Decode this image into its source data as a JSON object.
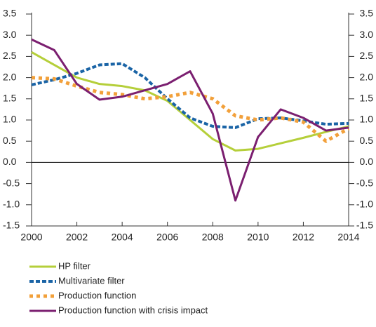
{
  "chart_data": {
    "type": "line",
    "x": [
      2000,
      2001,
      2002,
      2003,
      2004,
      2005,
      2006,
      2007,
      2008,
      2009,
      2010,
      2011,
      2012,
      2013,
      2014
    ],
    "xlim": [
      2000,
      2014
    ],
    "xticks": [
      2000,
      2002,
      2004,
      2006,
      2008,
      2010,
      2012,
      2014
    ],
    "ylim": [
      -1.5,
      3.5
    ],
    "yticks": [
      -1.5,
      {
        "value": -1,
        "label": "-1.0"
      },
      -0.5,
      {
        "value": 0,
        "label": "0.0"
      },
      0.5,
      {
        "value": 1,
        "label": "1.0"
      },
      1.5,
      {
        "value": 2,
        "label": "2.0"
      },
      2.5,
      {
        "value": 3,
        "label": "3.0"
      },
      3.5
    ],
    "series": [
      {
        "name": "HP filter",
        "color": "#b5cf3a",
        "style": "solid",
        "values": [
          2.6,
          2.3,
          2.0,
          1.85,
          1.8,
          1.7,
          1.45,
          1.0,
          0.55,
          0.28,
          0.32,
          0.45,
          0.58,
          0.72,
          0.85
        ]
      },
      {
        "name": "Multivariate filter",
        "color": "#1a64a6",
        "style": "dashed",
        "values": [
          1.83,
          1.95,
          2.1,
          2.3,
          2.33,
          2.0,
          1.5,
          1.05,
          0.85,
          0.82,
          1.03,
          1.05,
          0.98,
          0.9,
          0.92
        ]
      },
      {
        "name": "Production function",
        "color": "#f2a03a",
        "style": "dotted",
        "values": [
          2.0,
          1.97,
          1.8,
          1.65,
          1.6,
          1.5,
          1.55,
          1.65,
          1.5,
          1.1,
          1.0,
          1.05,
          0.95,
          0.5,
          0.8
        ]
      },
      {
        "name": "Production function with crisis impact",
        "color": "#7b1f70",
        "style": "solid",
        "values": [
          2.9,
          2.65,
          1.85,
          1.48,
          1.55,
          1.7,
          1.85,
          2.15,
          1.15,
          -0.9,
          0.6,
          1.25,
          1.05,
          0.75,
          0.82
        ]
      }
    ]
  }
}
